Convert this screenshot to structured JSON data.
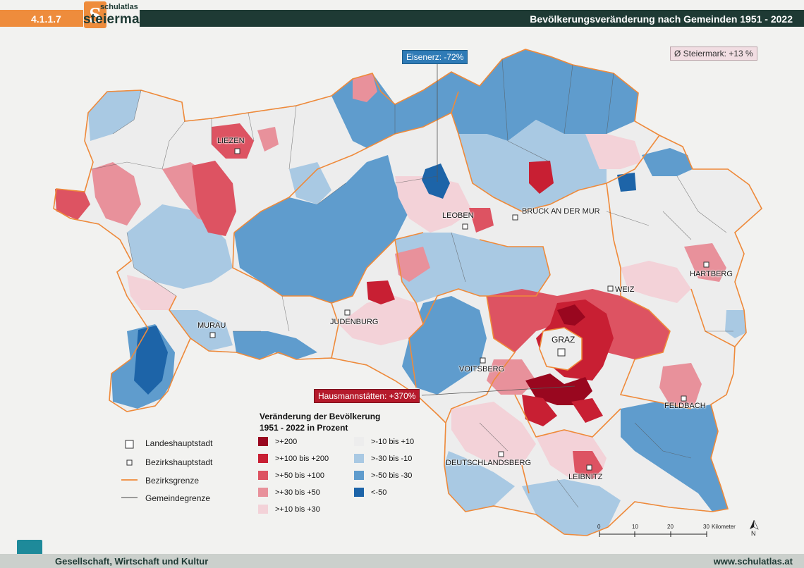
{
  "header": {
    "code": "4.1.1.7",
    "logo_small": "schulatlas",
    "logo_big": "steiermark",
    "logo_letter": "S",
    "title": "Bevölkerungsveränderung nach Gemeinden 1951 - 2022"
  },
  "callouts": {
    "eisenerz": "Eisenerz: -72%",
    "hausmannstaetten": "Hausmannstätten: +370%",
    "average": "Ø Steiermark: +13 %"
  },
  "cities": {
    "liezen": "LIEZEN",
    "leoben": "LEOBEN",
    "bruck": "BRUCK AN DER MUR",
    "hartberg": "HARTBERG",
    "weiz": "WEIZ",
    "judenburg": "JUDENBURG",
    "murau": "MURAU",
    "graz": "GRAZ",
    "voitsberg": "VOITSBERG",
    "feldbach": "FELDBACH",
    "deutschlandsberg": "DEUTSCHLANDSBERG",
    "leibnitz": "LEIBNITZ"
  },
  "legend": {
    "title_line1": "Veränderung der Bevölkerung",
    "title_line2": "1951 - 2022 in Prozent",
    "classes": [
      {
        "label": ">+200",
        "color": "#99071f"
      },
      {
        "label": ">+100 bis +200",
        "color": "#c81f33"
      },
      {
        "label": ">+50 bis +100",
        "color": "#dd5362"
      },
      {
        "label": ">+30 bis +50",
        "color": "#e8919b"
      },
      {
        "label": ">+10 bis +30",
        "color": "#f3d2d8"
      },
      {
        "label": ">-10 bis +10",
        "color": "#ededed"
      },
      {
        "label": ">-30 bis -10",
        "color": "#a9c9e3"
      },
      {
        "label": ">-50 bis -30",
        "color": "#5f9ccd"
      },
      {
        "label": "<-50",
        "color": "#1d64a8"
      }
    ],
    "symbols": {
      "capital": "Landeshauptstadt",
      "district_capital": "Bezirkshauptstadt",
      "district_border": "Bezirksgrenze",
      "municipal_border": "Gemeindegrenze"
    }
  },
  "scale": {
    "ticks": [
      "0",
      "10",
      "20",
      "30"
    ],
    "unit": "Kilometer",
    "north": "N"
  },
  "footer": {
    "left": "Gesellschaft, Wirtschaft und Kultur",
    "right": "www.schulatlas.at"
  }
}
